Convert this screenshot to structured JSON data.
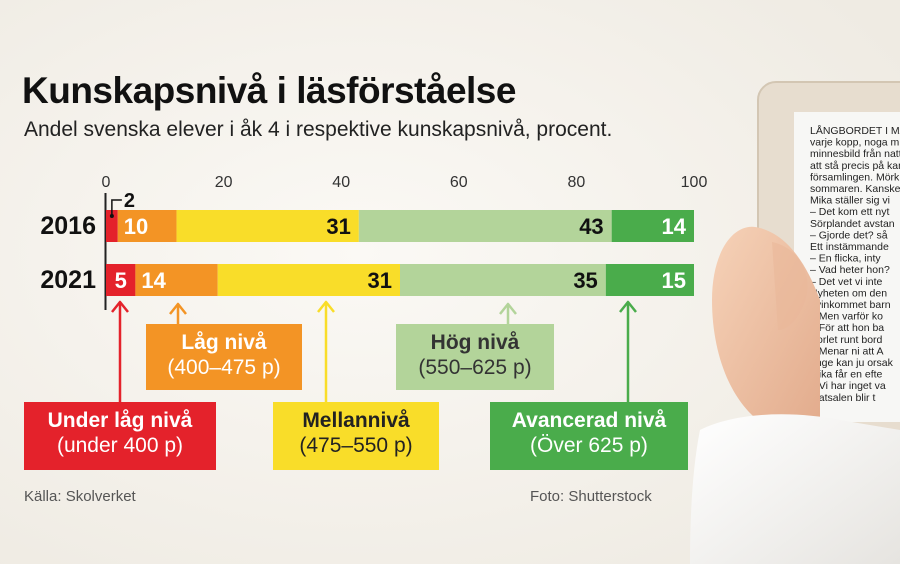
{
  "title": "Kunskapsnivå i läsförståelse",
  "subtitle": "Andel svenska elever i åk 4 i respektive kunskapsnivå, procent.",
  "source": "Källa: Skolverket",
  "photo_credit": "Foto: Shutterstock",
  "colors": {
    "under": "#e4222b",
    "lag": "#f39425",
    "mellan": "#f9dd29",
    "hog": "#b3d49a",
    "avancerad": "#4aac4b"
  },
  "legend": [
    {
      "key": "under",
      "name": "Under låg nivå",
      "range": "(under 400 p)",
      "text_color": "#ffffff"
    },
    {
      "key": "lag",
      "name": "Låg nivå",
      "range": "(400–475 p)",
      "text_color": "#ffffff"
    },
    {
      "key": "mellan",
      "name": "Mellannivå",
      "range": "(475–550 p)",
      "text_color": "#222222"
    },
    {
      "key": "hog",
      "name": "Hög nivå",
      "range": "(550–625 p)",
      "text_color": "#333333"
    },
    {
      "key": "avancerad",
      "name": "Avancerad nivå",
      "range": "(Över 625 p)",
      "text_color": "#ffffff"
    }
  ],
  "book_text": [
    "LÅNGBORDET I MATSA",
    "varje kopp, noga m",
    "minnesbild från natt",
    "att stå precis på kan",
    "församlingen. Mörk",
    "sommaren. Kanske",
    "Mika ställer sig vi",
    "– Det kom ett nyt",
    "Sörplandet avstan",
    "– Gjorde det? så",
    "Ett instämmande",
    "– En flicka, inty",
    "– Vad heter hon?",
    "– Det vet vi inte",
    "Nyheten om den",
    "nyinkommet barn",
    "– Men varför ko",
    "– För att hon ba",
    "Sorlet runt bord",
    "– Menar ni att A",
    "unge kan ju orsak",
    "Mika får en efte",
    "– Vi har inget va",
    "Matsalen blir t"
  ],
  "chart_data": {
    "type": "bar",
    "orientation": "horizontal",
    "stacked": true,
    "categories": [
      "2016",
      "2021"
    ],
    "series": [
      {
        "name": "Under låg nivå",
        "values": [
          2,
          5
        ]
      },
      {
        "name": "Låg nivå",
        "values": [
          10,
          14
        ]
      },
      {
        "name": "Mellannivå",
        "values": [
          31,
          31
        ]
      },
      {
        "name": "Hög nivå",
        "values": [
          43,
          35
        ]
      },
      {
        "name": "Avancerad nivå",
        "values": [
          14,
          15
        ]
      }
    ],
    "value_labels": [
      [
        "2",
        "10",
        "31",
        "43",
        "14"
      ],
      [
        "5",
        "14",
        "31",
        "35",
        "15"
      ]
    ],
    "xlim": [
      0,
      100
    ],
    "xticks": [
      0,
      20,
      40,
      60,
      80,
      100
    ],
    "grid": false
  }
}
